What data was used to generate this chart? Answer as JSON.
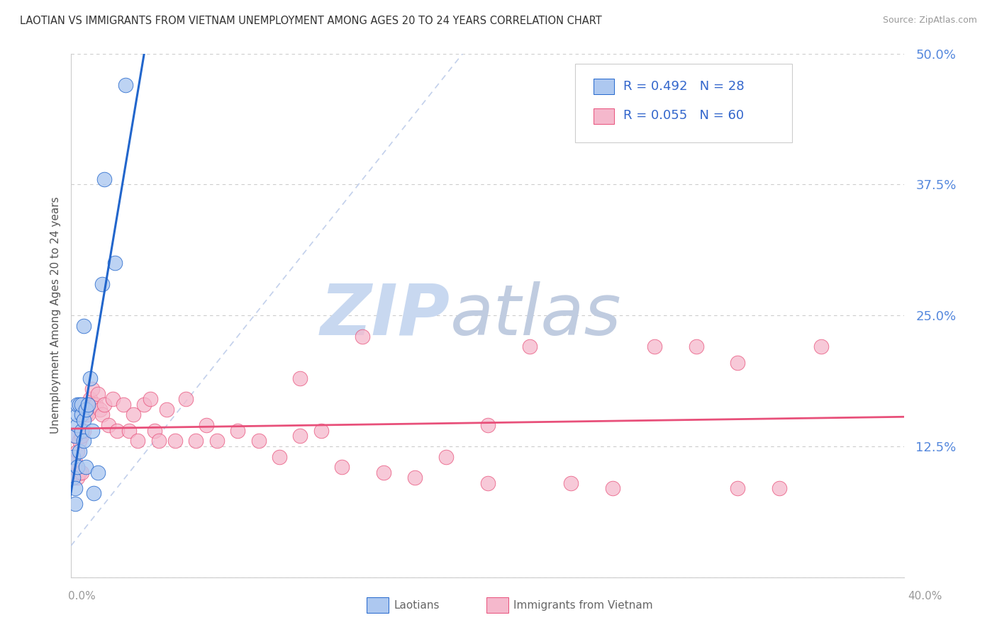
{
  "title": "LAOTIAN VS IMMIGRANTS FROM VIETNAM UNEMPLOYMENT AMONG AGES 20 TO 24 YEARS CORRELATION CHART",
  "source": "Source: ZipAtlas.com",
  "ylabel": "Unemployment Among Ages 20 to 24 years",
  "yticks": [
    0.0,
    0.125,
    0.25,
    0.375,
    0.5
  ],
  "ytick_labels": [
    "",
    "12.5%",
    "25.0%",
    "37.5%",
    "50.0%"
  ],
  "xlim": [
    0.0,
    0.4
  ],
  "ylim": [
    0.0,
    0.5
  ],
  "legend_r1": "0.492",
  "legend_n1": "28",
  "legend_r2": "0.055",
  "legend_n2": "60",
  "series1_color": "#adc8f0",
  "series2_color": "#f5b8cc",
  "line1_color": "#2266cc",
  "line2_color": "#e8507a",
  "diag_color": "#b8c8e8",
  "watermark_zip_color": "#c8d8f0",
  "watermark_atlas_color": "#c0cce0",
  "background_color": "#ffffff",
  "grid_color": "#cccccc",
  "title_color": "#333333",
  "source_color": "#999999",
  "ytick_color": "#5588dd",
  "ylabel_color": "#555555",
  "legend_text_color": "#333333",
  "legend_val_color": "#3366cc",
  "bottom_label_color": "#666666",
  "lao_x": [
    0.001,
    0.001,
    0.002,
    0.002,
    0.002,
    0.003,
    0.003,
    0.003,
    0.003,
    0.004,
    0.004,
    0.005,
    0.005,
    0.005,
    0.006,
    0.006,
    0.006,
    0.007,
    0.007,
    0.008,
    0.009,
    0.01,
    0.011,
    0.013,
    0.015,
    0.016,
    0.021,
    0.026
  ],
  "lao_y": [
    0.095,
    0.115,
    0.07,
    0.085,
    0.135,
    0.105,
    0.145,
    0.155,
    0.165,
    0.12,
    0.165,
    0.14,
    0.155,
    0.165,
    0.13,
    0.24,
    0.15,
    0.105,
    0.16,
    0.165,
    0.19,
    0.14,
    0.08,
    0.1,
    0.28,
    0.38,
    0.3,
    0.47
  ],
  "viet_x": [
    0.001,
    0.002,
    0.002,
    0.003,
    0.003,
    0.004,
    0.004,
    0.005,
    0.005,
    0.006,
    0.006,
    0.007,
    0.008,
    0.009,
    0.01,
    0.011,
    0.012,
    0.013,
    0.014,
    0.015,
    0.016,
    0.018,
    0.02,
    0.022,
    0.025,
    0.028,
    0.03,
    0.032,
    0.035,
    0.038,
    0.04,
    0.042,
    0.046,
    0.05,
    0.055,
    0.06,
    0.065,
    0.07,
    0.08,
    0.09,
    0.1,
    0.11,
    0.12,
    0.13,
    0.14,
    0.15,
    0.165,
    0.18,
    0.2,
    0.22,
    0.24,
    0.26,
    0.28,
    0.3,
    0.32,
    0.34,
    0.36,
    0.11,
    0.2,
    0.32
  ],
  "viet_y": [
    0.105,
    0.11,
    0.135,
    0.095,
    0.12,
    0.13,
    0.1,
    0.135,
    0.1,
    0.14,
    0.165,
    0.155,
    0.155,
    0.17,
    0.18,
    0.165,
    0.165,
    0.175,
    0.16,
    0.155,
    0.165,
    0.145,
    0.17,
    0.14,
    0.165,
    0.14,
    0.155,
    0.13,
    0.165,
    0.17,
    0.14,
    0.13,
    0.16,
    0.13,
    0.17,
    0.13,
    0.145,
    0.13,
    0.14,
    0.13,
    0.115,
    0.19,
    0.14,
    0.105,
    0.23,
    0.1,
    0.095,
    0.115,
    0.09,
    0.22,
    0.09,
    0.085,
    0.22,
    0.22,
    0.085,
    0.085,
    0.22,
    0.135,
    0.145,
    0.205
  ]
}
